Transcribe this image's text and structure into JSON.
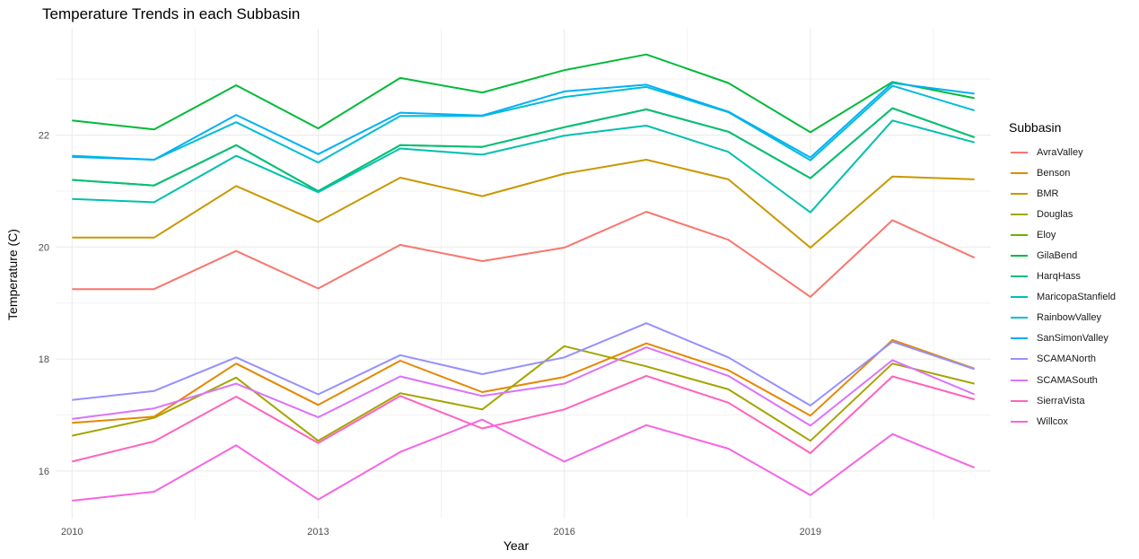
{
  "chart_data": {
    "type": "line",
    "title": "Temperature Trends in each Subbasin",
    "xlabel": "Year",
    "ylabel": "Temperature (C)",
    "legend_title": "Subbasin",
    "legend_position": "right",
    "grid": true,
    "xlim": [
      2009.8,
      2021.2
    ],
    "ylim": [
      15.15,
      23.9
    ],
    "xticks": [
      2010,
      2013,
      2016,
      2019
    ],
    "yticks": [
      16,
      18,
      20,
      22
    ],
    "x": [
      2010,
      2011,
      2012,
      2013,
      2014,
      2015,
      2016,
      2017,
      2018,
      2019,
      2020,
      2021
    ],
    "series": [
      {
        "name": "AvraValley",
        "color": "#F8766D",
        "values": [
          19.25,
          19.25,
          19.93,
          19.26,
          20.04,
          19.75,
          19.99,
          20.63,
          20.13,
          19.11,
          20.48,
          19.81
        ]
      },
      {
        "name": "Benson",
        "color": "#E58700",
        "values": [
          16.86,
          16.97,
          17.92,
          17.18,
          17.97,
          17.41,
          17.68,
          18.28,
          17.8,
          16.99,
          18.34,
          17.83
        ]
      },
      {
        "name": "BMR",
        "color": "#C99800",
        "values": [
          20.17,
          20.17,
          21.09,
          20.45,
          21.24,
          20.91,
          21.31,
          21.56,
          21.21,
          19.99,
          21.26,
          21.21
        ]
      },
      {
        "name": "Douglas",
        "color": "#A3A500",
        "values": [
          16.63,
          16.95,
          17.67,
          16.54,
          17.39,
          17.1,
          18.23,
          17.87,
          17.46,
          16.54,
          17.92,
          17.56
        ]
      },
      {
        "name": "Eloy",
        "color": "#6BB100",
        "values": [
          21.2,
          21.1,
          21.82,
          21.0,
          21.82,
          21.79,
          22.14,
          22.46,
          22.06,
          21.23,
          22.48,
          21.96
        ]
      },
      {
        "name": "GilaBend",
        "color": "#00BA38",
        "values": [
          22.26,
          22.1,
          22.89,
          22.12,
          23.02,
          22.76,
          23.16,
          23.44,
          22.93,
          22.05,
          22.95,
          22.66
        ]
      },
      {
        "name": "HarqHass",
        "color": "#00BF7D",
        "values": [
          21.2,
          21.1,
          21.82,
          21.0,
          21.82,
          21.79,
          22.14,
          22.46,
          22.06,
          21.23,
          22.48,
          21.96
        ]
      },
      {
        "name": "MaricopaStanfield",
        "color": "#00C0AF",
        "values": [
          20.86,
          20.8,
          21.63,
          20.98,
          21.76,
          21.65,
          21.99,
          22.17,
          21.7,
          20.62,
          22.26,
          21.87
        ]
      },
      {
        "name": "RainbowValley",
        "color": "#00BCD8",
        "values": [
          21.63,
          21.56,
          22.23,
          21.51,
          22.34,
          22.34,
          22.68,
          22.86,
          22.41,
          21.55,
          22.88,
          22.44
        ]
      },
      {
        "name": "SanSimonValley",
        "color": "#00B0F6",
        "values": [
          21.61,
          21.56,
          22.36,
          21.66,
          22.4,
          22.35,
          22.78,
          22.9,
          22.42,
          21.6,
          22.93,
          22.74
        ]
      },
      {
        "name": "SCAMANorth",
        "color": "#9590FF",
        "values": [
          17.27,
          17.43,
          18.03,
          17.37,
          18.07,
          17.73,
          18.03,
          18.64,
          18.03,
          17.17,
          18.31,
          17.82
        ]
      },
      {
        "name": "SCAMASouth",
        "color": "#DB72FB",
        "values": [
          16.93,
          17.12,
          17.56,
          16.96,
          17.69,
          17.34,
          17.56,
          18.21,
          17.7,
          16.81,
          17.98,
          17.37
        ]
      },
      {
        "name": "SierraVista",
        "color": "#FF62BC",
        "values": [
          16.17,
          16.53,
          17.33,
          16.5,
          17.34,
          16.76,
          17.1,
          17.7,
          17.22,
          16.32,
          17.69,
          17.28
        ]
      },
      {
        "name": "Willcox",
        "color": "#F565E3",
        "values": [
          15.47,
          15.63,
          16.46,
          15.49,
          16.34,
          16.92,
          16.17,
          16.82,
          16.4,
          15.57,
          16.66,
          16.06
        ]
      }
    ]
  }
}
